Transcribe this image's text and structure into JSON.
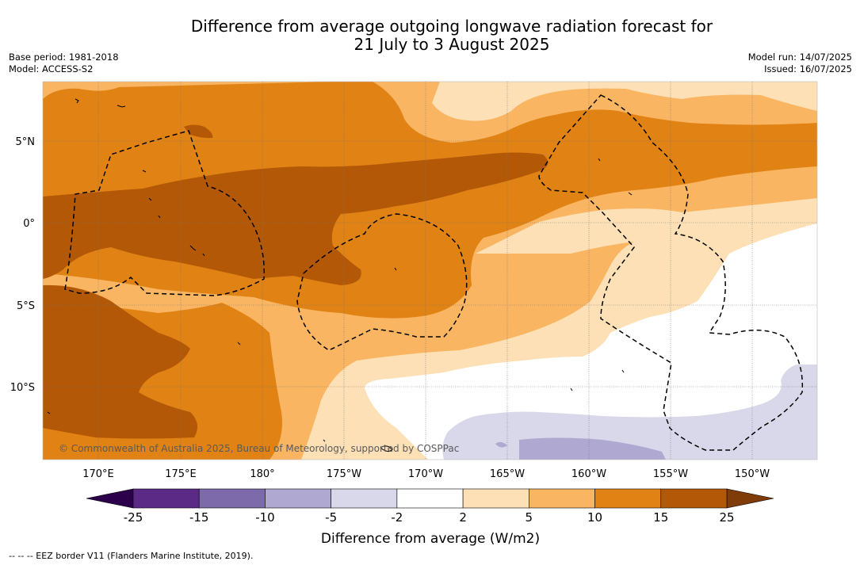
{
  "title": {
    "line1": "Difference from average outgoing longwave radiation forecast for",
    "line2": "21 July to 3 August 2025"
  },
  "meta": {
    "base_period": "Base period: 1981-2018",
    "model": "Model: ACCESS-S2",
    "model_run": "Model run: 14/07/2025",
    "issued": "Issued: 16/07/2025"
  },
  "map": {
    "longitude_ticks": [
      "170°E",
      "175°E",
      "180°",
      "175°W",
      "170°W",
      "165°W",
      "160°W",
      "155°W",
      "150°W"
    ],
    "latitude_ticks": [
      "5°N",
      "0°",
      "5°S",
      "10°S"
    ],
    "copyright": "© Commonwealth of Australia 2025, Bureau of Meteorology, supported by COSPPac"
  },
  "colorbar": {
    "labels": [
      "-25",
      "-15",
      "-10",
      "-5",
      "-2",
      "2",
      "5",
      "10",
      "15",
      "25"
    ],
    "colors": [
      "#5b2a86",
      "#7c6aaa",
      "#afa8d1",
      "#d8d8ea",
      "#ffffff",
      "#fde0b6",
      "#f9b561",
      "#e08214",
      "#b35806"
    ],
    "extend_low_color": "#2d004b",
    "extend_high_color": "#7f3b08",
    "title": "Difference from average (W/m2)"
  },
  "legend_footer": "--  --  -- EEZ border V11 (Flanders Marine Institute, 2019)."
}
